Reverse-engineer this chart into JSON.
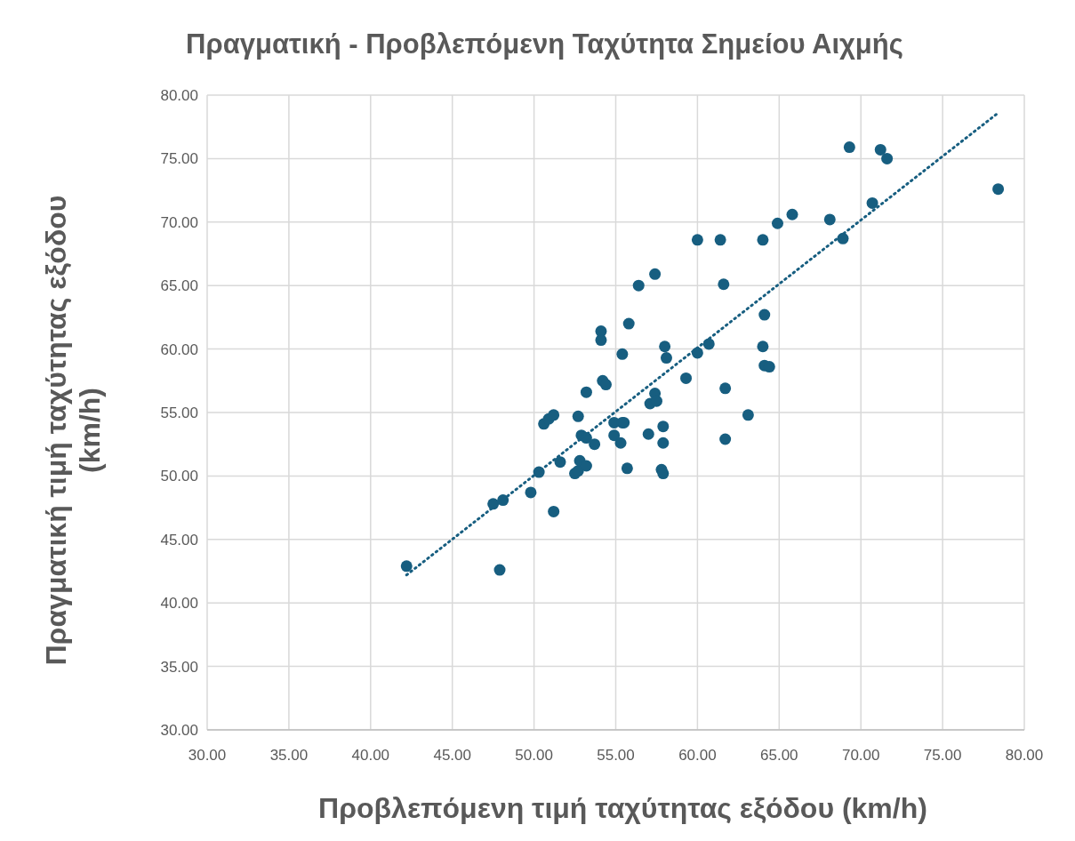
{
  "chart_data": {
    "type": "scatter",
    "title": "Πραγματική - Προβλεπόμενη Ταχύτητα Σημείου Αιχμής",
    "xlabel": "Προβλεπόμενη τιμή ταχύτητας εξόδου (km/h)",
    "ylabel": "Πραγματική τιμή ταχύτητας εξόδου (km/h)",
    "xlim": [
      30,
      80
    ],
    "ylim": [
      30,
      80
    ],
    "xticks": [
      {
        "value": 30,
        "label": "30.00"
      },
      {
        "value": 35,
        "label": "35.00"
      },
      {
        "value": 40,
        "label": "40.00"
      },
      {
        "value": 45,
        "label": "45.00"
      },
      {
        "value": 50,
        "label": "50.00"
      },
      {
        "value": 55,
        "label": "55.00"
      },
      {
        "value": 60,
        "label": "60.00"
      },
      {
        "value": 65,
        "label": "65.00"
      },
      {
        "value": 70,
        "label": "70.00"
      },
      {
        "value": 75,
        "label": "75.00"
      },
      {
        "value": 80,
        "label": "80.00"
      }
    ],
    "yticks": [
      {
        "value": 30,
        "label": "30.00"
      },
      {
        "value": 35,
        "label": "35.00"
      },
      {
        "value": 40,
        "label": "40.00"
      },
      {
        "value": 45,
        "label": "45.00"
      },
      {
        "value": 50,
        "label": "50.00"
      },
      {
        "value": 55,
        "label": "55.00"
      },
      {
        "value": 60,
        "label": "60.00"
      },
      {
        "value": 65,
        "label": "65.00"
      },
      {
        "value": 70,
        "label": "70.00"
      },
      {
        "value": 75,
        "label": "75.00"
      },
      {
        "value": 80,
        "label": "80.00"
      }
    ],
    "grid": true,
    "marker": "circle",
    "series": [
      {
        "color": "#175e80",
        "x": [
          42.2,
          47.9,
          47.5,
          48.1,
          49.8,
          51.2,
          50.3,
          51.6,
          50.6,
          50.9,
          51.2,
          52.5,
          52.7,
          52.8,
          53.2,
          52.9,
          53.2,
          53.7,
          52.7,
          53.2,
          54.1,
          54.1,
          54.2,
          54.4,
          54.9,
          54.9,
          55.3,
          55.4,
          55.5,
          55.4,
          55.7,
          55.8,
          56.4,
          57.0,
          57.1,
          57.4,
          57.5,
          57.4,
          57.8,
          57.9,
          57.9,
          57.9,
          58.0,
          58.1,
          59.3,
          60.0,
          60.0,
          60.7,
          61.4,
          61.6,
          61.7,
          61.7,
          63.1,
          64.0,
          64.0,
          64.1,
          64.1,
          64.4,
          64.9,
          65.8,
          68.1,
          68.9,
          69.3,
          70.7,
          71.2,
          71.6,
          78.4
        ],
        "values": [
          42.9,
          42.6,
          47.8,
          48.1,
          48.7,
          47.2,
          50.3,
          51.1,
          54.1,
          54.5,
          54.8,
          50.2,
          50.4,
          51.2,
          50.8,
          53.2,
          53.0,
          52.5,
          54.7,
          56.6,
          61.4,
          60.7,
          57.5,
          57.2,
          54.2,
          53.2,
          52.6,
          54.2,
          54.2,
          59.6,
          50.6,
          62.0,
          65.0,
          53.3,
          55.7,
          56.5,
          55.9,
          65.9,
          50.5,
          50.2,
          52.6,
          53.9,
          60.2,
          59.3,
          57.7,
          59.7,
          68.6,
          60.4,
          68.6,
          65.1,
          56.9,
          52.9,
          54.8,
          68.6,
          60.2,
          62.7,
          58.7,
          58.6,
          69.9,
          70.6,
          70.2,
          68.7,
          75.9,
          71.5,
          75.7,
          75.0,
          72.6
        ]
      },
      {
        "type": "line",
        "color": "#175e80",
        "line_style": "dotted",
        "marker": "none",
        "x": [
          42.2,
          78.4
        ],
        "values": [
          42.2,
          78.6
        ]
      }
    ]
  }
}
